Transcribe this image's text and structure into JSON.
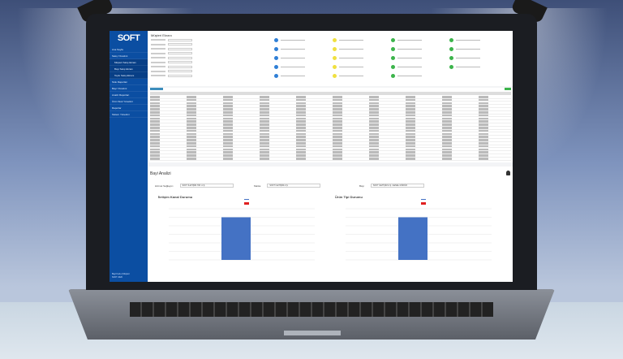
{
  "app": {
    "logo": "SOFT",
    "page_title": "Müşteri Ekranı"
  },
  "sidebar": {
    "items": [
      {
        "label": "Ana Sayfa"
      },
      {
        "label": "Satış Yönetimi"
      },
      {
        "label": "Müşteri Satış Ekranı",
        "sub": true
      },
      {
        "label": "Bayi Satış Ekranı",
        "sub": true
      },
      {
        "label": "Toplu Satış Ekranı",
        "sub": true
      },
      {
        "label": "Stok Raporları"
      },
      {
        "label": "Bayi Yönetimi"
      },
      {
        "label": "Analiz Raporları"
      },
      {
        "label": "Ürün Stok Yönetimi"
      },
      {
        "label": "Raporlar"
      },
      {
        "label": "Sistem Yönetimi"
      }
    ],
    "footer": [
      "Bayi Kodu | Müşteri",
      "SOFT 2020"
    ]
  },
  "status_colors": [
    "#2f7fd6",
    "#f0e040",
    "#3cb44b",
    "#3cb44b"
  ],
  "bayi": {
    "title": "Bayi Analizi",
    "filters": [
      {
        "label": "Hizmet Sağlayıcı",
        "value": "SOFT İLETİŞİM HİZ. A.Ş."
      },
      {
        "label": "Marka",
        "value": "SOFT İLETİŞİM A.Ş."
      },
      {
        "label": "Bayi",
        "value": "SOFT İLETİŞİM A.Ş. GENEL MÜDÜR"
      }
    ]
  },
  "chart_data": [
    {
      "type": "bar",
      "title": "İletişim Kanal Durumu",
      "categories": [
        ""
      ],
      "series": [
        {
          "name": "",
          "values": [
            1
          ],
          "color": "#4472c4"
        },
        {
          "name": "",
          "values": [
            0
          ],
          "color": "#e02020"
        }
      ],
      "ylim": [
        0,
        1.2
      ],
      "grid": true,
      "legend": "top-right"
    },
    {
      "type": "bar",
      "title": "Ürün Tipi Durumu",
      "categories": [
        ""
      ],
      "series": [
        {
          "name": "",
          "values": [
            1
          ],
          "color": "#4472c4"
        },
        {
          "name": "",
          "values": [
            0
          ],
          "color": "#e02020"
        }
      ],
      "ylim": [
        0,
        1.2
      ],
      "grid": true,
      "legend": "top-right"
    }
  ]
}
